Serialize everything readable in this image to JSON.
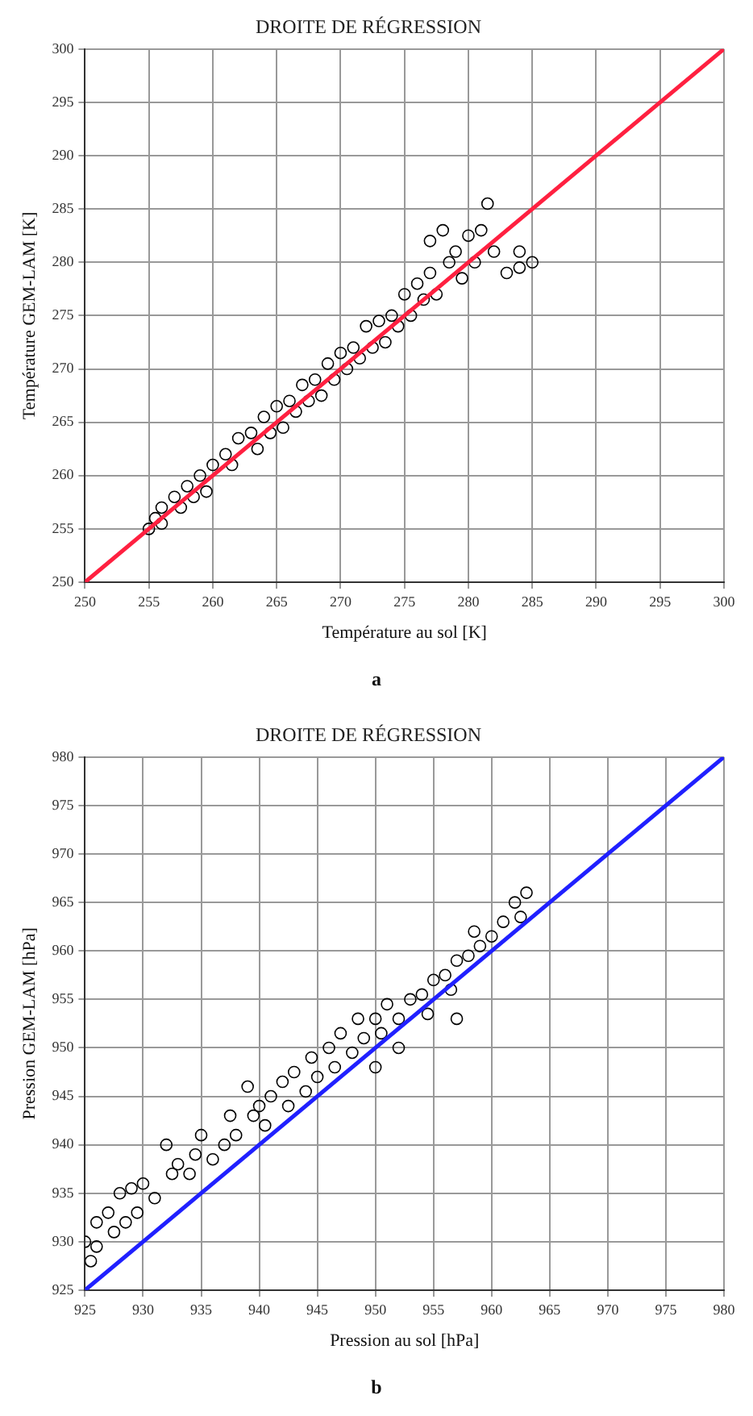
{
  "chart_data": [
    {
      "type": "scatter",
      "title": "DROITE DE RÉGRESSION",
      "xlabel": "Température au sol [K]",
      "ylabel": "Température GEM-LAM [K]",
      "annotations": [
        "a"
      ],
      "xlim": [
        250,
        300
      ],
      "xticks": [
        250,
        255,
        260,
        265,
        270,
        275,
        280,
        285,
        290,
        295,
        300
      ],
      "ylim": [
        250,
        300
      ],
      "yticks": [
        250,
        255,
        260,
        265,
        270,
        275,
        280,
        285,
        290,
        295,
        300
      ],
      "grid": true,
      "marker": "circle",
      "legend": false,
      "series": [
        {
          "color": "#000000",
          "x": [
            255,
            255.5,
            256,
            256,
            257,
            257.5,
            258,
            258.5,
            259,
            259.5,
            260,
            261,
            261.5,
            262,
            263,
            263.5,
            264,
            264.5,
            265,
            265.5,
            266,
            266.5,
            267,
            267.5,
            268,
            268.5,
            269,
            269.5,
            270,
            270.5,
            271,
            271.5,
            272,
            272.5,
            273,
            273.5,
            274,
            274.5,
            275,
            275.5,
            276,
            276.5,
            277,
            277,
            277.5,
            278,
            278.5,
            279,
            279.5,
            280,
            280.5,
            281,
            281.5,
            282,
            283,
            284,
            285,
            284
          ],
          "values": [
            255,
            256,
            257,
            255.5,
            258,
            257,
            259,
            258,
            260,
            258.5,
            261,
            262,
            261,
            263.5,
            264,
            262.5,
            265.5,
            264,
            266.5,
            264.5,
            267,
            266,
            268.5,
            267,
            269,
            267.5,
            270.5,
            269,
            271.5,
            270,
            272,
            271,
            274,
            272,
            274.5,
            272.5,
            275,
            274,
            277,
            275,
            278,
            276.5,
            279,
            282,
            277,
            283,
            280,
            281,
            278.5,
            282.5,
            280,
            283,
            285.5,
            281,
            279,
            279.5,
            280,
            281
          ]
        },
        {
          "type": "line",
          "color": "#ff2040",
          "marker": "none",
          "x": [
            250,
            300
          ],
          "values": [
            250,
            300
          ]
        }
      ]
    },
    {
      "type": "scatter",
      "title": "DROITE DE RÉGRESSION",
      "xlabel": "Pression au sol [hPa]",
      "ylabel": "Pression GEM-LAM [hPa]",
      "annotations": [
        "b"
      ],
      "xlim": [
        925,
        980
      ],
      "xticks": [
        925,
        930,
        935,
        940,
        945,
        950,
        955,
        960,
        965,
        970,
        975,
        980
      ],
      "ylim": [
        925,
        980
      ],
      "yticks": [
        925,
        930,
        935,
        940,
        945,
        950,
        955,
        960,
        965,
        970,
        975,
        980
      ],
      "grid": true,
      "marker": "circle",
      "legend": false,
      "series": [
        {
          "color": "#000000",
          "x": [
            925,
            925.5,
            926,
            926,
            927,
            927.5,
            928,
            928.5,
            929,
            929.5,
            930,
            931,
            932,
            932.5,
            933,
            934,
            934.5,
            935,
            936,
            937,
            937.5,
            938,
            939,
            939.5,
            940,
            940.5,
            941,
            942,
            942.5,
            943,
            944,
            944.5,
            945,
            946,
            946.5,
            947,
            948,
            948.5,
            949,
            950,
            950.5,
            951,
            952,
            952,
            953,
            954,
            954.5,
            955,
            956,
            956.5,
            957,
            958,
            958.5,
            959,
            960,
            961,
            962,
            962.5,
            963,
            957,
            950
          ],
          "values": [
            930,
            928,
            932,
            929.5,
            933,
            931,
            935,
            932,
            935.5,
            933,
            936,
            934.5,
            940,
            937,
            938,
            937,
            939,
            941,
            938.5,
            940,
            943,
            941,
            946,
            943,
            944,
            942,
            945,
            946.5,
            944,
            947.5,
            945.5,
            949,
            947,
            950,
            948,
            951.5,
            949.5,
            953,
            951,
            953,
            951.5,
            954.5,
            953,
            950,
            955,
            955.5,
            953.5,
            957,
            957.5,
            956,
            959,
            959.5,
            962,
            960.5,
            961.5,
            963,
            965,
            963.5,
            966,
            953,
            948
          ]
        },
        {
          "type": "line",
          "color": "#2020ff",
          "marker": "none",
          "x": [
            925,
            980
          ],
          "values": [
            925,
            980
          ]
        }
      ]
    }
  ]
}
